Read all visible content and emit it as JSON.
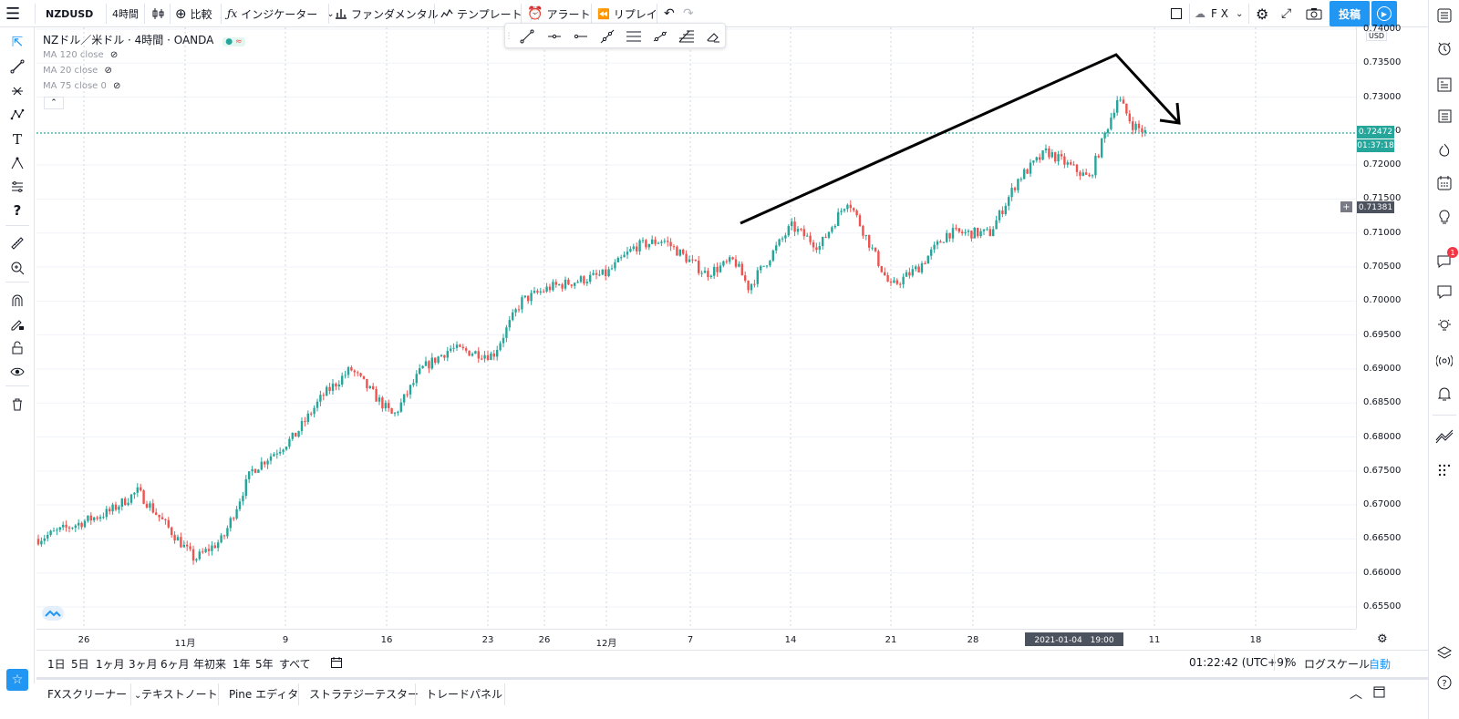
{
  "topbar": {
    "symbol": "NZDUSD",
    "interval": "4時間",
    "compare": "比較",
    "indicators": "インジケーター",
    "fundamentals": "ファンダメンタル",
    "templates": "テンプレート",
    "alert": "アラート",
    "replay": "リプレイ",
    "layout_name": "F X",
    "publish": "投稿"
  },
  "legend": {
    "title": "NZドル／米ドル · 4時間 · OANDA",
    "ma": [
      "MA 120 close",
      "MA 20 close",
      "MA 75 close 0"
    ]
  },
  "price_axis": {
    "currency": "USD",
    "ticks": [
      "0.74000",
      "0.73500",
      "0.73000",
      "0.72500",
      "0.72000",
      "0.71500",
      "0.71000",
      "0.70500",
      "0.70000",
      "0.69500",
      "0.69000",
      "0.68500",
      "0.68000",
      "0.67500",
      "0.67000",
      "0.66500",
      "0.66000",
      "0.65500"
    ],
    "current_price": "0.72472",
    "countdown": "01:37:18",
    "crosshair_price": "0.71381"
  },
  "time_axis": {
    "ticks": [
      "26",
      "11月",
      "9",
      "16",
      "23",
      "26",
      "12月",
      "7",
      "14",
      "21",
      "28",
      "11",
      "18"
    ],
    "crosshair_label": "2021-01-04　19:00"
  },
  "bottom_bar": {
    "ranges": [
      "1日",
      "5日",
      "1ヶ月",
      "3ヶ月",
      "6ヶ月",
      "年初来",
      "1年",
      "5年",
      "すべて"
    ],
    "clock": "01:22:42 (UTC+9)",
    "percent": "%",
    "log_scale": "ログスケール",
    "auto": "自動"
  },
  "panel_tabs": [
    "FXスクリーナー",
    "テキストノート",
    "Pine エディタ",
    "ストラテジーテスター",
    "トレードパネル"
  ],
  "right_toolbar": {
    "notification_count": "1"
  },
  "colors": {
    "up": "#26a69a",
    "down": "#ef5350",
    "accent": "#2196f3",
    "price_line": "#26a69a"
  },
  "chart_data": {
    "type": "candlestick",
    "symbol": "NZDUSD",
    "interval": "4時間",
    "ylim": [
      0.65,
      0.742
    ],
    "close_series_approx": [
      {
        "x": "2020-10-22",
        "y": 0.665
      },
      {
        "x": "2020-10-27",
        "y": 0.669
      },
      {
        "x": "2020-10-29",
        "y": 0.672
      },
      {
        "x": "2020-11-02",
        "y": 0.662
      },
      {
        "x": "2020-11-04",
        "y": 0.665
      },
      {
        "x": "2020-11-06",
        "y": 0.675
      },
      {
        "x": "2020-11-09",
        "y": 0.68
      },
      {
        "x": "2020-11-11",
        "y": 0.686
      },
      {
        "x": "2020-11-13",
        "y": 0.69
      },
      {
        "x": "2020-11-16",
        "y": 0.683
      },
      {
        "x": "2020-11-18",
        "y": 0.69
      },
      {
        "x": "2020-11-20",
        "y": 0.693
      },
      {
        "x": "2020-11-23",
        "y": 0.692
      },
      {
        "x": "2020-11-25",
        "y": 0.7
      },
      {
        "x": "2020-11-27",
        "y": 0.702
      },
      {
        "x": "2020-12-01",
        "y": 0.704
      },
      {
        "x": "2020-12-03",
        "y": 0.708
      },
      {
        "x": "2020-12-05",
        "y": 0.709
      },
      {
        "x": "2020-12-08",
        "y": 0.704
      },
      {
        "x": "2020-12-10",
        "y": 0.706
      },
      {
        "x": "2020-12-11",
        "y": 0.702
      },
      {
        "x": "2020-12-14",
        "y": 0.711
      },
      {
        "x": "2020-12-16",
        "y": 0.708
      },
      {
        "x": "2020-12-18",
        "y": 0.715
      },
      {
        "x": "2020-12-21",
        "y": 0.702
      },
      {
        "x": "2020-12-23",
        "y": 0.705
      },
      {
        "x": "2020-12-25",
        "y": 0.71
      },
      {
        "x": "2020-12-28",
        "y": 0.71
      },
      {
        "x": "2020-12-30",
        "y": 0.718
      },
      {
        "x": "2021-01-01",
        "y": 0.722
      },
      {
        "x": "2021-01-04",
        "y": 0.718
      },
      {
        "x": "2021-01-05",
        "y": 0.724
      },
      {
        "x": "2021-01-06",
        "y": 0.73
      },
      {
        "x": "2021-01-07",
        "y": 0.726
      },
      {
        "x": "2021-01-08",
        "y": 0.7247
      }
    ]
  }
}
